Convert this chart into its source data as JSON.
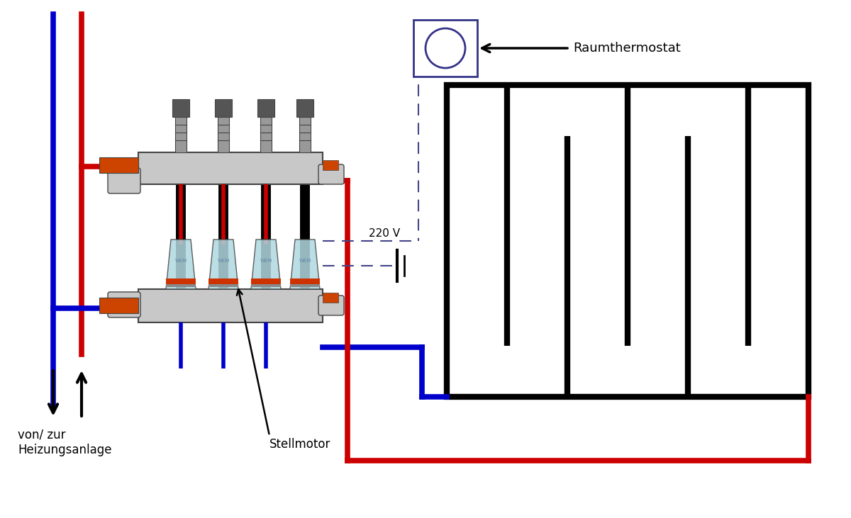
{
  "bg_color": "#ffffff",
  "BLACK": "#000000",
  "RED": "#cc0000",
  "BLUE": "#0000cc",
  "GRAY": "#c8c8c8",
  "DGRAY": "#444444",
  "LGRAY": "#999999",
  "ORANGE": "#cc4400",
  "LIGHTBLUE": "#b0d8e0",
  "DASHED_COLOR": "#444488",
  "label_heizung": "von/ zur\nHeizungsanlage",
  "label_stellmotor": "Stellmotor",
  "label_raumthermostat": "Raumthermostat",
  "label_220v": "220 V",
  "font_size": 11,
  "fig_width": 12.0,
  "fig_height": 7.31
}
